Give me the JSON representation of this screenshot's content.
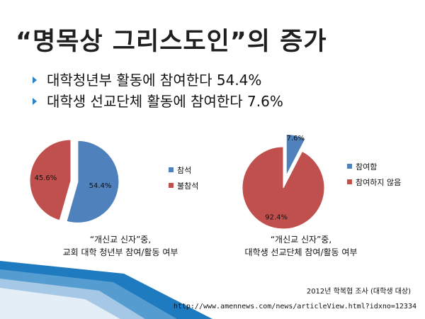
{
  "slide": {
    "title": "“명목상 그리스도인”의 증가",
    "bullets": [
      "대학청년부 활동에 참여한다 54.4%",
      "대학생 선교단체 활동에 참여한다 7.6%"
    ],
    "captions": [
      [
        "“개신교 신자”중,",
        "교회 대학 청년부 참여/활동 여부"
      ],
      [
        "“개신교 신자”중,",
        "대학생 선교단체 참여/활동 여부"
      ]
    ],
    "source_survey": "2012년 학복협 조사 (대학생 대상)",
    "source_url": "http://www.amennews.com/news/articleView.html?idxno=12334"
  },
  "colors": {
    "series_blue": "#4f81bd",
    "series_red": "#c0504d",
    "accent": "#2a82c8"
  },
  "chart_data": [
    {
      "type": "pie",
      "title": "",
      "slices": [
        {
          "label": "참석",
          "value": 54.4,
          "display": "54.4%",
          "color": "#4f81bd"
        },
        {
          "label": "불참석",
          "value": 45.6,
          "display": "45.6%",
          "color": "#c0504d"
        }
      ],
      "legend": "right"
    },
    {
      "type": "pie",
      "title": "",
      "slices": [
        {
          "label": "참여함",
          "value": 7.6,
          "display": "7.6%",
          "color": "#4f81bd"
        },
        {
          "label": "참여하지 않음",
          "value": 92.4,
          "display": "92.4%",
          "color": "#c0504d"
        }
      ],
      "legend": "right"
    }
  ]
}
